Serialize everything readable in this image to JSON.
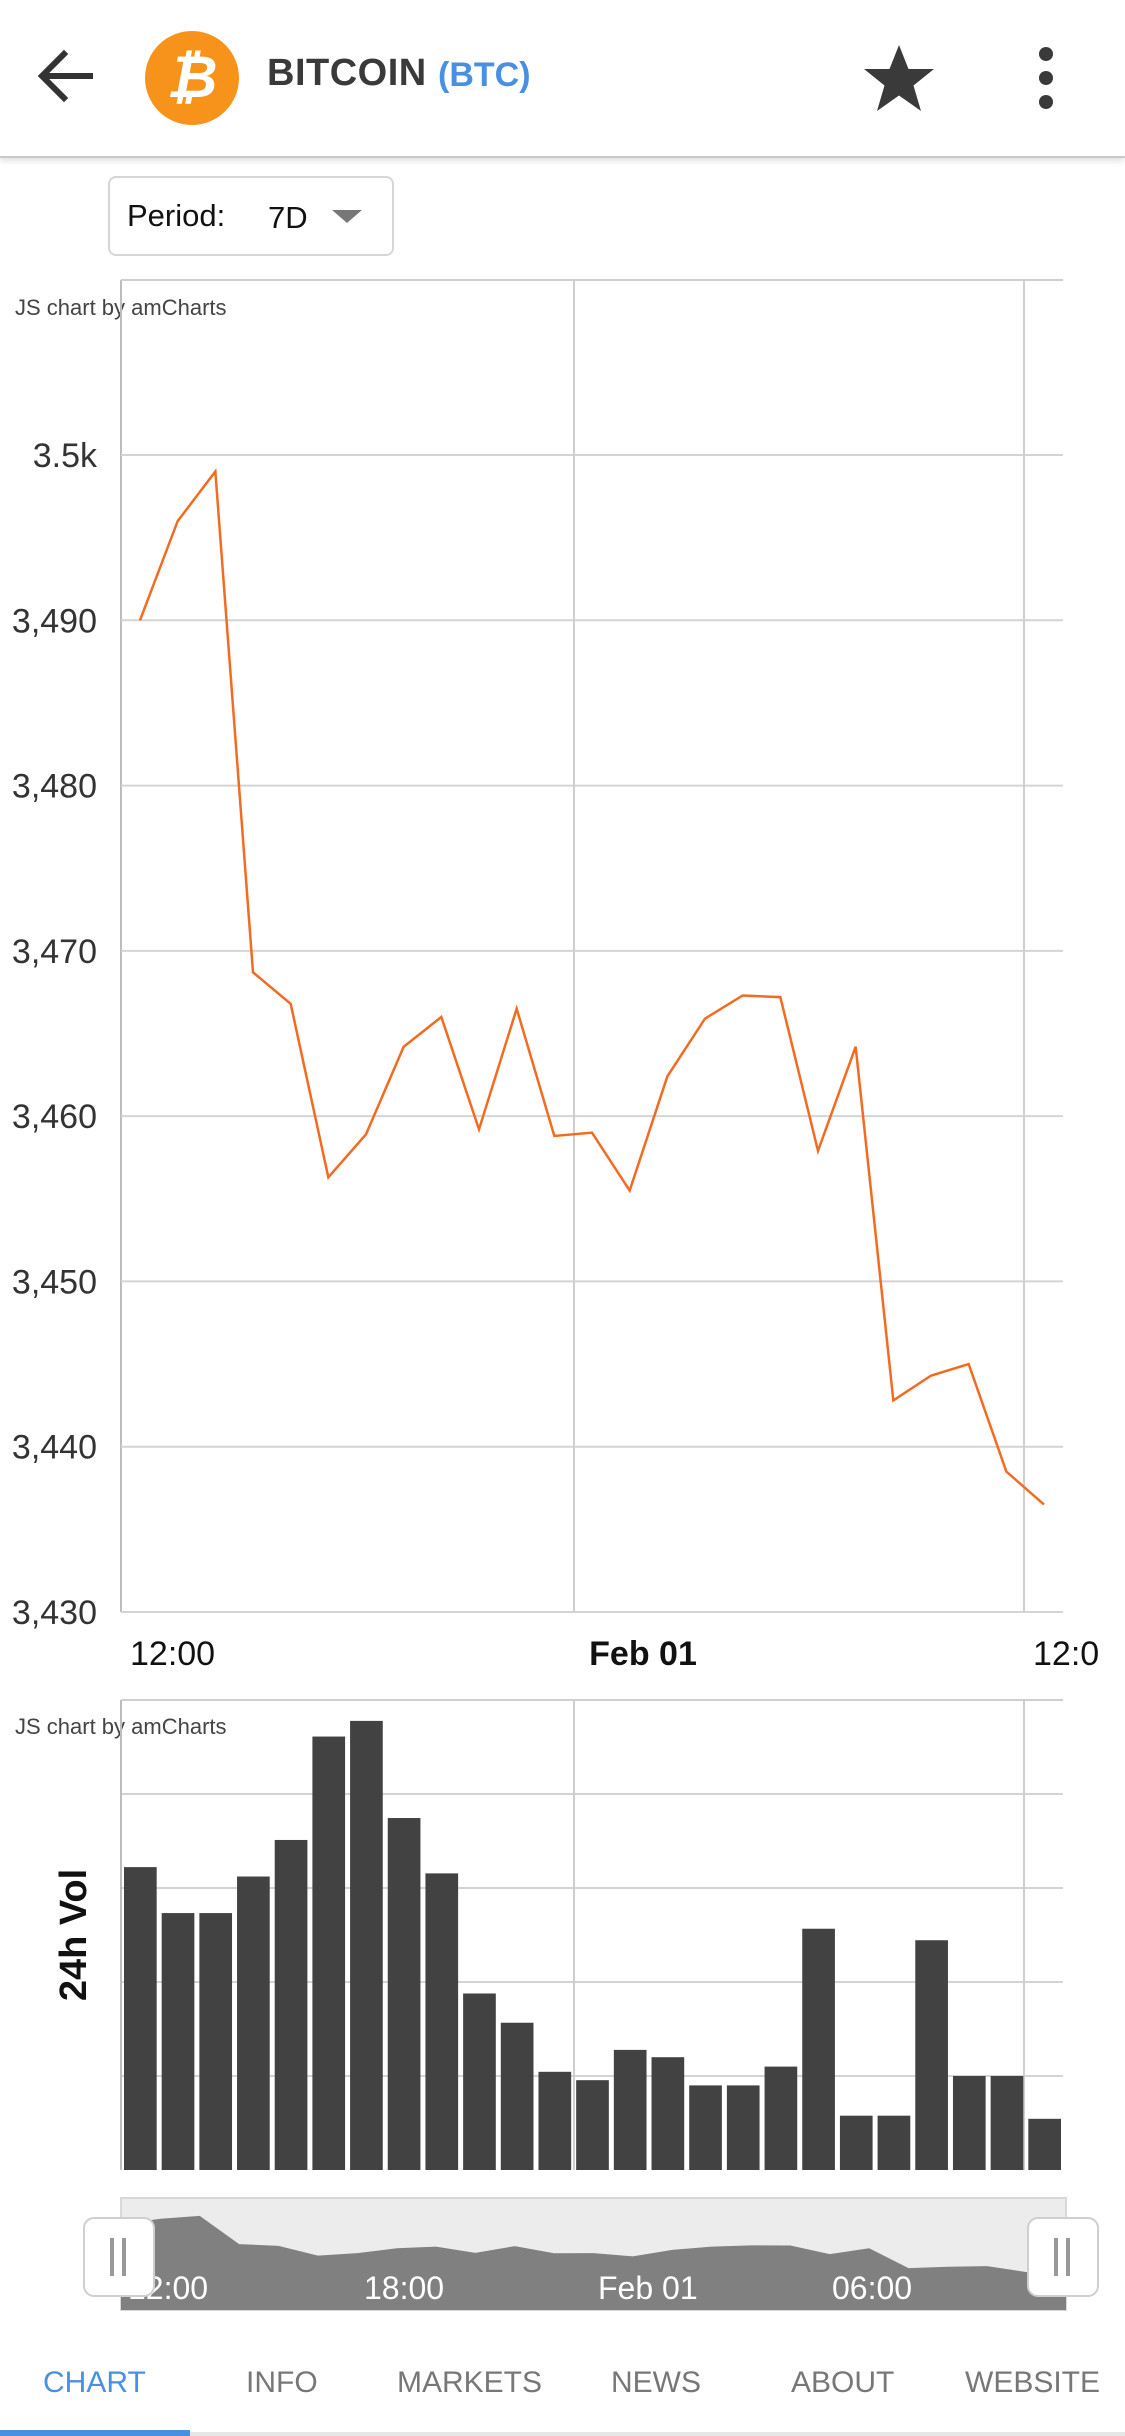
{
  "header": {
    "coin_name": "BITCOIN",
    "coin_symbol": "(BTC)",
    "coin_glyph": "₿",
    "back_icon": "arrow-back-icon",
    "favorite_icon": "star-icon",
    "menu_icon": "more-vert-icon",
    "brand_color": "#f7931a",
    "accent_color": "#4a90e2"
  },
  "period": {
    "label": "Period:",
    "value": "7D"
  },
  "credits": {
    "price_chart": "JS chart by amCharts",
    "volume_chart": "JS chart by amCharts"
  },
  "chart_data": [
    {
      "type": "line",
      "series_color": "#f26b21",
      "ylim": [
        3430,
        3500
      ],
      "y_ticks": [
        3430,
        3440,
        3450,
        3460,
        3470,
        3480,
        3490,
        3500
      ],
      "y_tick_labels": [
        "3,430",
        "3,440",
        "3,450",
        "3,460",
        "3,470",
        "3,480",
        "3,490",
        "3.5k"
      ],
      "x_tick_labels": [
        "12:00",
        "Feb 01",
        "12:0"
      ],
      "grid": true,
      "values": [
        3490,
        3496,
        3499,
        3468.7,
        3466.8,
        3456.3,
        3458.9,
        3464.2,
        3466,
        3459.2,
        3466.5,
        3458.8,
        3459,
        3455.5,
        3462.4,
        3465.9,
        3467.3,
        3467.2,
        3457.9,
        3464.2,
        3442.8,
        3444.3,
        3445,
        3438.5,
        3436.5
      ]
    },
    {
      "type": "bar",
      "ylabel": "24h Vol",
      "series_color": "#424242",
      "grid": true,
      "values": [
        2.9,
        2.46,
        2.46,
        2.81,
        3.16,
        4.15,
        4.3,
        3.37,
        2.84,
        1.69,
        1.41,
        0.94,
        0.86,
        1.15,
        1.08,
        0.81,
        0.81,
        0.99,
        2.31,
        0.52,
        0.52,
        2.2,
        0.9,
        0.9,
        0.49
      ]
    }
  ],
  "navigator": {
    "labels": [
      "12:00",
      "18:00",
      "Feb 01",
      "06:00"
    ]
  },
  "tabs": [
    {
      "label": "CHART",
      "active": true
    },
    {
      "label": "INFO"
    },
    {
      "label": "MARKETS"
    },
    {
      "label": "NEWS"
    },
    {
      "label": "ABOUT"
    },
    {
      "label": "WEBSITE"
    }
  ]
}
